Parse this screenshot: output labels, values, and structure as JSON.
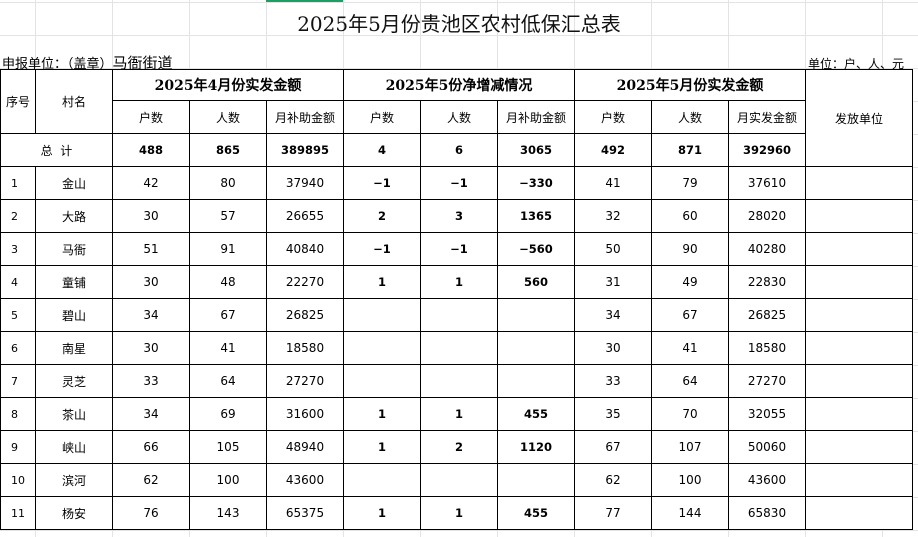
{
  "title": "2025年5月份贵池区农村低保汇总表",
  "reporting_unit_label": "申报单位：（盖章）",
  "reporting_unit": "马衙街道",
  "unit_note": "单位：户、人、元",
  "headers": {
    "seq": "序号",
    "village": "村名",
    "april": "2025年4月份实发金额",
    "change": "2025年5份净增减情况",
    "may": "2025年5月份实发金额",
    "issuer": "发放单位",
    "april_cols": [
      "户数",
      "人数",
      "月补助金额"
    ],
    "change_cols": [
      "户数",
      "人数",
      "月补助金额"
    ],
    "may_cols": [
      "户数",
      "人数",
      "月实发金额"
    ]
  },
  "total": {
    "label": "总  计",
    "values": [
      "488",
      "865",
      "389895",
      "4",
      "6",
      "3065",
      "492",
      "871",
      "392960"
    ]
  },
  "rows": [
    {
      "seq": "1",
      "village": "金山",
      "values": [
        "42",
        "80",
        "37940",
        "−1",
        "−1",
        "−330",
        "41",
        "79",
        "37610"
      ]
    },
    {
      "seq": "2",
      "village": "大路",
      "values": [
        "30",
        "57",
        "26655",
        "2",
        "3",
        "1365",
        "32",
        "60",
        "28020"
      ]
    },
    {
      "seq": "3",
      "village": "马衙",
      "values": [
        "51",
        "91",
        "40840",
        "−1",
        "−1",
        "−560",
        "50",
        "90",
        "40280"
      ]
    },
    {
      "seq": "4",
      "village": "童铺",
      "values": [
        "30",
        "48",
        "22270",
        "1",
        "1",
        "560",
        "31",
        "49",
        "22830"
      ]
    },
    {
      "seq": "5",
      "village": "碧山",
      "values": [
        "34",
        "67",
        "26825",
        "",
        "",
        "",
        "34",
        "67",
        "26825"
      ]
    },
    {
      "seq": "6",
      "village": "南星",
      "values": [
        "30",
        "41",
        "18580",
        "",
        "",
        "",
        "30",
        "41",
        "18580"
      ]
    },
    {
      "seq": "7",
      "village": "灵芝",
      "values": [
        "33",
        "64",
        "27270",
        "",
        "",
        "",
        "33",
        "64",
        "27270"
      ]
    },
    {
      "seq": "8",
      "village": "茶山",
      "values": [
        "34",
        "69",
        "31600",
        "1",
        "1",
        "455",
        "35",
        "70",
        "32055"
      ]
    },
    {
      "seq": "9",
      "village": "峡山",
      "values": [
        "66",
        "105",
        "48940",
        "1",
        "2",
        "1120",
        "67",
        "107",
        "50060"
      ]
    },
    {
      "seq": "10",
      "village": "滨河",
      "values": [
        "62",
        "100",
        "43600",
        "",
        "",
        "",
        "62",
        "100",
        "43600"
      ]
    },
    {
      "seq": "11",
      "village": "杨安",
      "values": [
        "76",
        "143",
        "65375",
        "1",
        "1",
        "455",
        "77",
        "144",
        "65830"
      ]
    }
  ]
}
